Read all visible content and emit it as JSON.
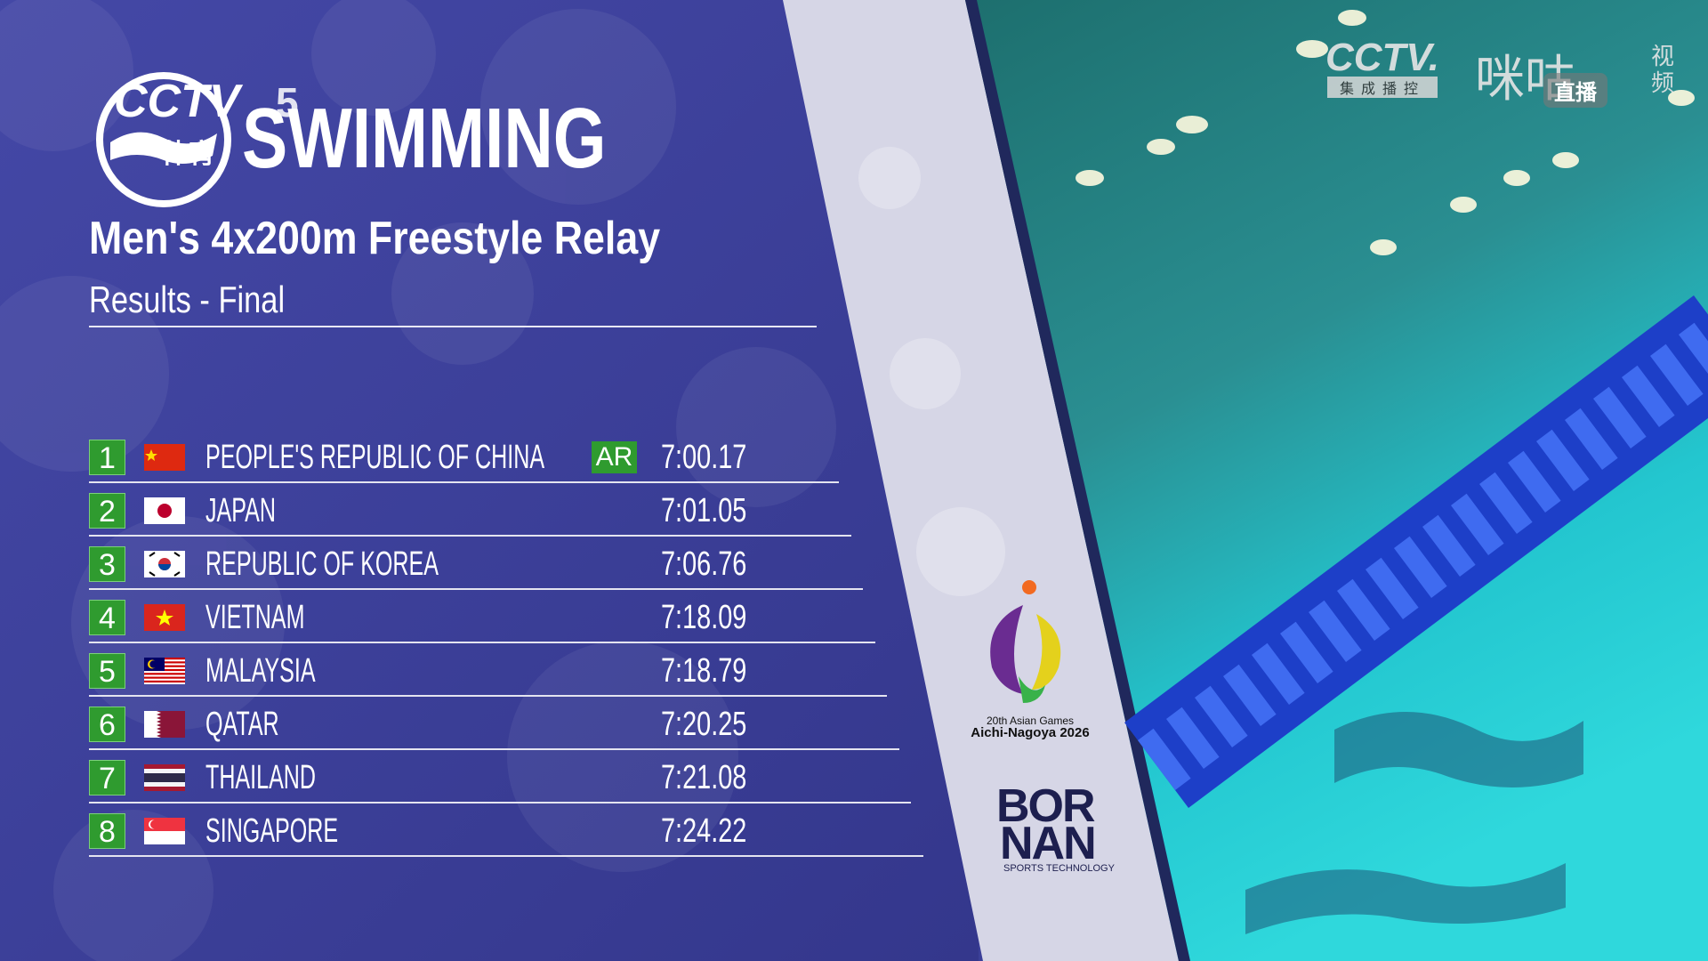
{
  "header": {
    "channel_logo": "CCTV",
    "channel_number": "5",
    "channel_sub": "体育",
    "sport": "SWIMMING",
    "event": "Men's 4x200m Freestyle Relay",
    "phase": "Results - Final"
  },
  "results": [
    {
      "rank": "1",
      "country": "PEOPLE'S REPUBLIC OF CHINA",
      "record": "AR",
      "time": "7:00.17"
    },
    {
      "rank": "2",
      "country": "JAPAN",
      "time": "7:01.05"
    },
    {
      "rank": "3",
      "country": "REPUBLIC OF KOREA",
      "time": "7:06.76"
    },
    {
      "rank": "4",
      "country": "VIETNAM",
      "time": "7:18.09"
    },
    {
      "rank": "5",
      "country": "MALAYSIA",
      "time": "7:18.79"
    },
    {
      "rank": "6",
      "country": "QATAR",
      "time": "7:20.25"
    },
    {
      "rank": "7",
      "country": "THAILAND",
      "time": "7:21.08"
    },
    {
      "rank": "8",
      "country": "SINGAPORE",
      "time": "7:24.22"
    }
  ],
  "watermark": {
    "cctv": "CCTV.",
    "cctv_sub": "集成播控",
    "migu": "咪咕",
    "migu_sub": "视频",
    "live": "直播"
  },
  "sponsors": {
    "games_line1": "20th Asian Games",
    "games_line2": "Aichi-Nagoya 2026",
    "timing_line1": "BOR",
    "timing_line2": "NAN",
    "timing_sub": "SPORTS TECHNOLOGY"
  }
}
